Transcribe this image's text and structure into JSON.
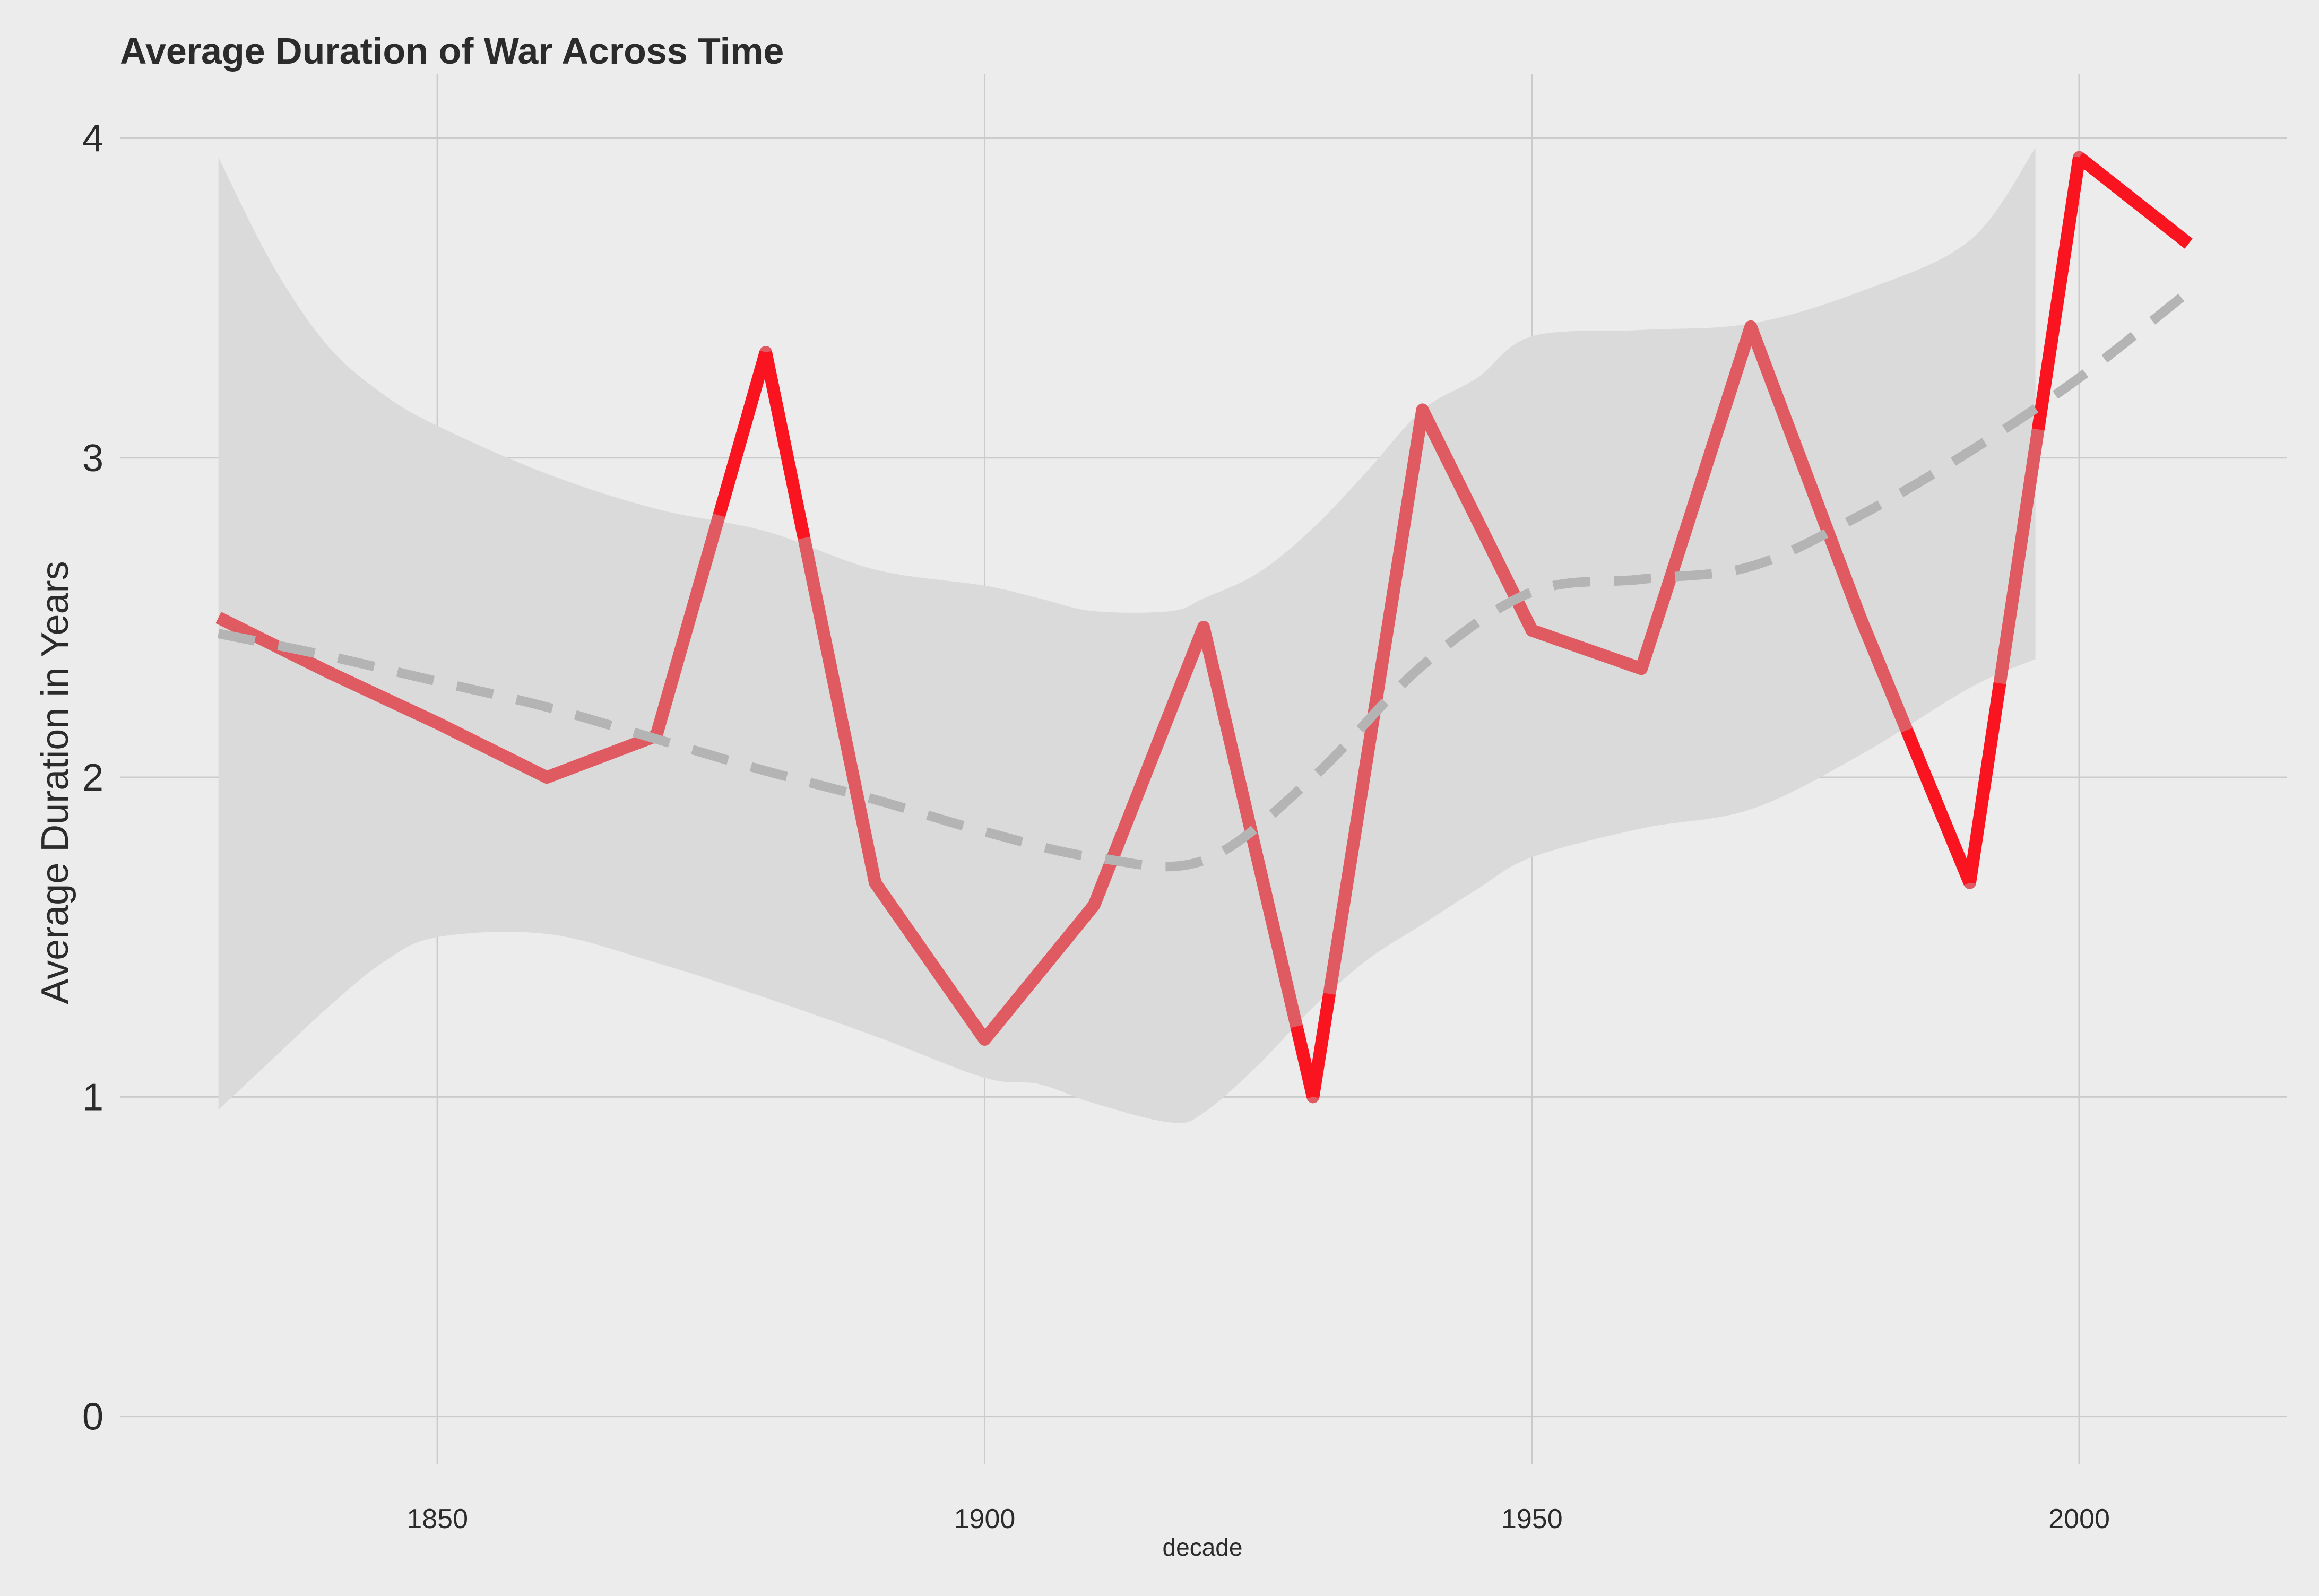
{
  "chart_data": {
    "type": "line",
    "title": "Average Duration of War Across Time",
    "xlabel": "decade",
    "ylabel": "Average Duration in Years",
    "xlim": [
      1821,
      2019
    ],
    "ylim": [
      -0.15,
      4.2
    ],
    "x_ticks": [
      1850,
      1900,
      1950,
      2000
    ],
    "y_ticks": [
      0,
      1,
      2,
      3,
      4
    ],
    "grid": true,
    "colors": {
      "background": "#ececec",
      "grid": "#cbcbcb",
      "line": "#e05a62",
      "line_emphasis": "#fa1420",
      "smooth": "#b4b4b4",
      "ribbon": "#dadada"
    },
    "series": [
      {
        "x": [
          1830,
          1840,
          1850,
          1860,
          1870,
          1880,
          1890,
          1900,
          1910,
          1920,
          1930,
          1940,
          1950,
          1960,
          1970,
          1980,
          1990,
          2000,
          2010
        ],
        "values": [
          2.5,
          2.33,
          2.17,
          2.0,
          2.13,
          3.33,
          1.67,
          1.18,
          1.6,
          2.47,
          1.0,
          3.15,
          2.46,
          2.34,
          3.41,
          2.5,
          1.67,
          3.94,
          3.67
        ]
      }
    ],
    "smooth": {
      "x": [
        1830,
        1840,
        1850,
        1860,
        1870,
        1880,
        1890,
        1900,
        1910,
        1920,
        1930,
        1940,
        1950,
        1960,
        1970,
        1980,
        1990,
        2000,
        2010
      ],
      "values": [
        2.45,
        2.38,
        2.3,
        2.22,
        2.12,
        2.02,
        1.93,
        1.83,
        1.75,
        1.74,
        2.0,
        2.35,
        2.58,
        2.62,
        2.66,
        2.82,
        3.02,
        3.25,
        3.52
      ]
    },
    "ribbon": {
      "x": [
        1830,
        1835,
        1840,
        1845,
        1850,
        1860,
        1870,
        1880,
        1890,
        1900,
        1905,
        1910,
        1917,
        1920,
        1925,
        1930,
        1935,
        1940,
        1945,
        1950,
        1960,
        1970,
        1980,
        1990,
        1996
      ],
      "lower": [
        0.96,
        1.12,
        1.28,
        1.42,
        1.5,
        1.51,
        1.42,
        1.31,
        1.19,
        1.06,
        1.04,
        0.98,
        0.92,
        0.95,
        1.1,
        1.28,
        1.43,
        1.54,
        1.65,
        1.75,
        1.84,
        1.9,
        2.07,
        2.28,
        2.37
      ],
      "upper": [
        3.94,
        3.6,
        3.35,
        3.2,
        3.1,
        2.95,
        2.84,
        2.77,
        2.65,
        2.6,
        2.56,
        2.52,
        2.52,
        2.56,
        2.64,
        2.78,
        2.96,
        3.15,
        3.25,
        3.38,
        3.4,
        3.42,
        3.52,
        3.68,
        3.97
      ]
    }
  }
}
